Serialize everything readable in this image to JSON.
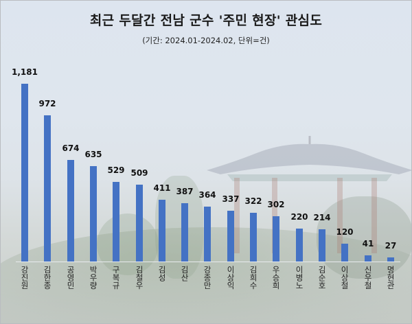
{
  "chart_data": {
    "type": "bar",
    "title": "최근 두달간 전남 군수 '주민 현장' 관심도",
    "subtitle": "(기간: 2024.01-2024.02, 단위=건)",
    "xlabel": "",
    "ylabel": "",
    "categories": [
      "강진원",
      "김한종",
      "공영민",
      "박우량",
      "구복규",
      "김철우",
      "김성",
      "김산",
      "강종만",
      "이상익",
      "김희수",
      "우승희",
      "이병노",
      "김순호",
      "이상철",
      "신우철",
      "명현관"
    ],
    "values": [
      1181,
      972,
      674,
      635,
      529,
      509,
      411,
      387,
      364,
      337,
      322,
      302,
      220,
      214,
      120,
      41,
      27
    ],
    "value_labels": [
      "1,181",
      "972",
      "674",
      "635",
      "529",
      "509",
      "411",
      "387",
      "364",
      "337",
      "322",
      "302",
      "220",
      "214",
      "120",
      "41",
      "27"
    ],
    "ylim": [
      0,
      1181
    ],
    "grid": false,
    "legend": "none",
    "bar_color": "#4472c4",
    "category_label_orientation": "vertical"
  },
  "header": {
    "title": "최근 두달간 전남 군수 '주민 현장' 관심도",
    "subtitle": "(기간: 2024.01-2024.02, 단위=건)"
  }
}
